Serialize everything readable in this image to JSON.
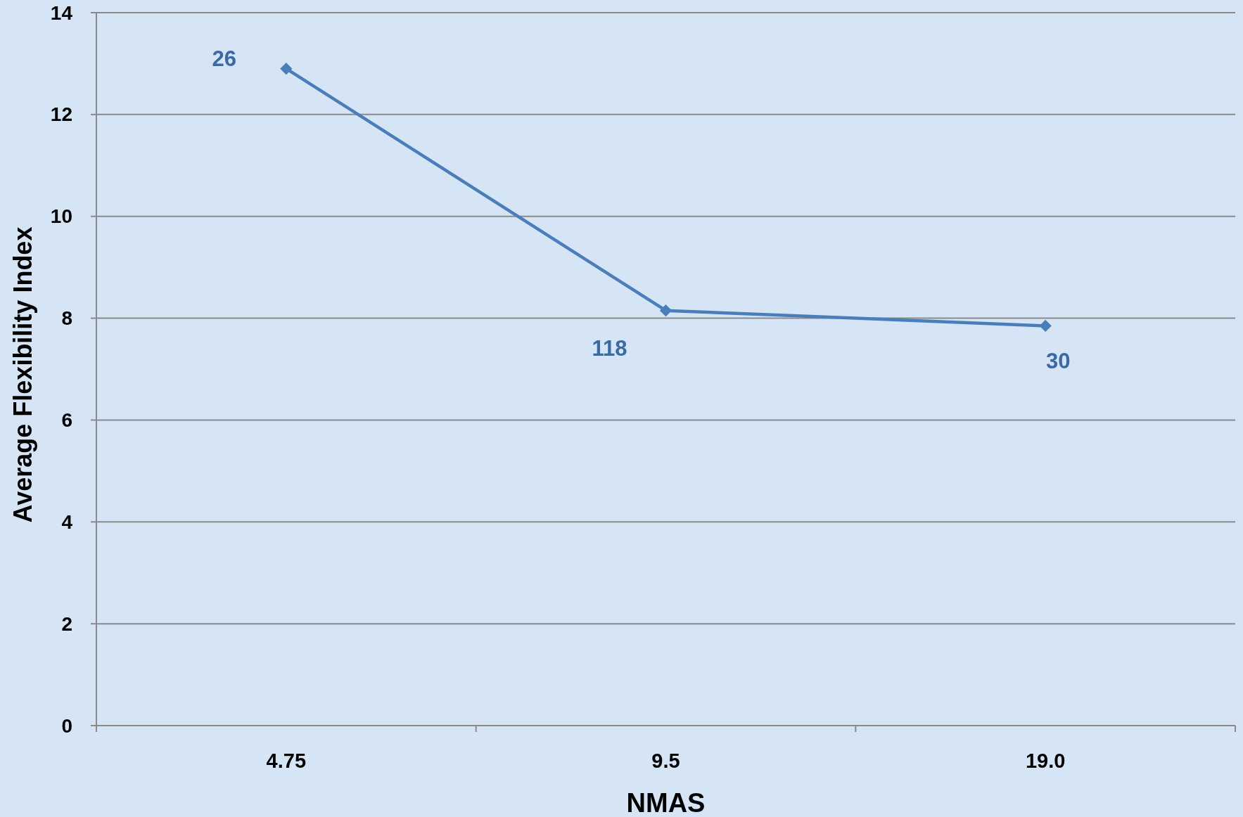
{
  "chart_data": {
    "type": "line",
    "xlabel": "NMAS",
    "ylabel": "Average Flexibility Index",
    "categories": [
      "4.75",
      "9.5",
      "19.0"
    ],
    "series": [
      {
        "color": "#4a7ebb",
        "values": [
          12.9,
          8.15,
          7.85
        ]
      }
    ],
    "ylim": [
      0,
      14
    ],
    "yticks": [
      0,
      2,
      4,
      6,
      8,
      10,
      12,
      14
    ],
    "grid": "y",
    "marker": "diamond",
    "line_style": "solid",
    "annotations": [
      {
        "text": "26",
        "x": "4.75",
        "y": 12.9
      },
      {
        "text": "118",
        "x": "9.5",
        "y": 8.15
      },
      {
        "text": "30",
        "x": "19.0",
        "y": 7.85
      }
    ]
  }
}
